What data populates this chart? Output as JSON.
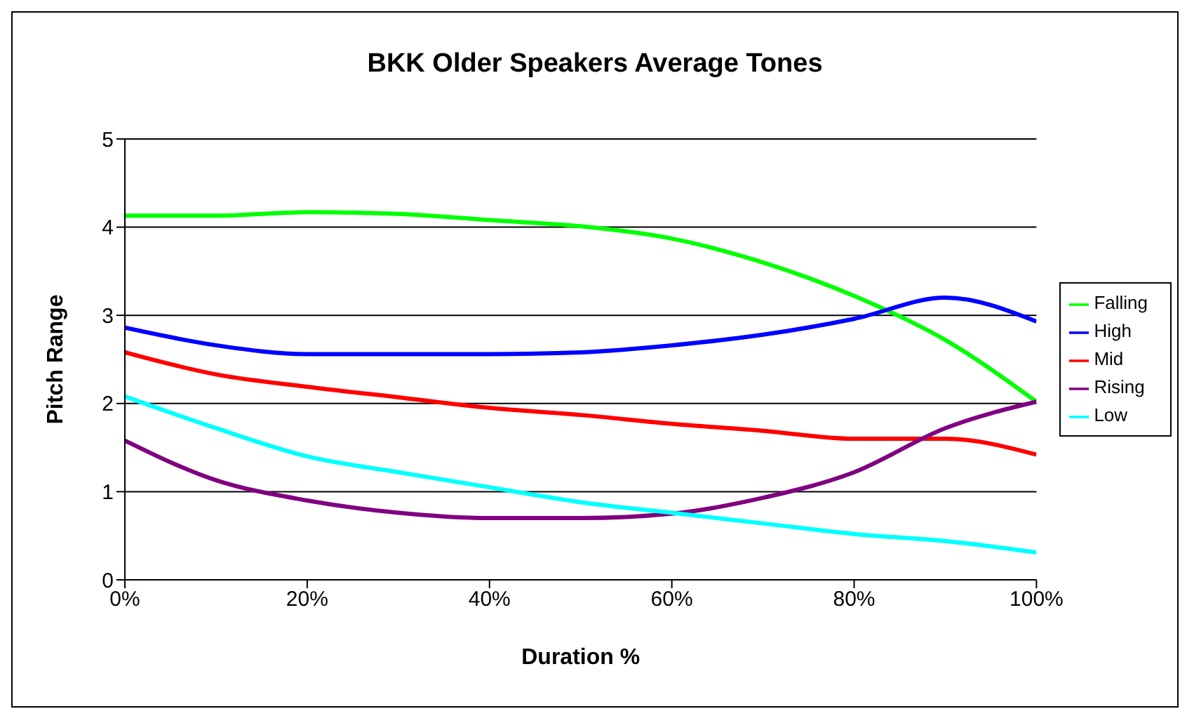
{
  "chart_data": {
    "type": "line",
    "title": "BKK Older Speakers Average Tones",
    "xlabel": "Duration %",
    "ylabel": "Pitch Range",
    "x": [
      0,
      10,
      20,
      30,
      40,
      50,
      60,
      70,
      80,
      90,
      100
    ],
    "series": [
      {
        "name": "Falling",
        "color": "#00ff00",
        "values": [
          4.13,
          4.13,
          4.17,
          4.15,
          4.08,
          4.01,
          3.87,
          3.6,
          3.22,
          2.72,
          2.02
        ]
      },
      {
        "name": "High",
        "color": "#0000ff",
        "values": [
          2.86,
          2.66,
          2.56,
          2.56,
          2.56,
          2.58,
          2.66,
          2.78,
          2.96,
          3.2,
          2.93
        ]
      },
      {
        "name": "Mid",
        "color": "#ff0000",
        "values": [
          2.58,
          2.33,
          2.19,
          2.07,
          1.95,
          1.87,
          1.77,
          1.69,
          1.6,
          1.6,
          1.42
        ]
      },
      {
        "name": "Rising",
        "color": "#800080",
        "values": [
          1.58,
          1.13,
          0.9,
          0.76,
          0.7,
          0.7,
          0.75,
          0.93,
          1.22,
          1.72,
          2.02
        ]
      },
      {
        "name": "Low",
        "color": "#00ffff",
        "values": [
          2.08,
          1.72,
          1.4,
          1.22,
          1.05,
          0.88,
          0.76,
          0.64,
          0.52,
          0.44,
          0.31
        ]
      }
    ],
    "xlim": [
      0,
      100
    ],
    "xticks": [
      {
        "value": 0,
        "label": "0%"
      },
      {
        "value": 20,
        "label": "20%"
      },
      {
        "value": 40,
        "label": "40%"
      },
      {
        "value": 60,
        "label": "60%"
      },
      {
        "value": 80,
        "label": "80%"
      },
      {
        "value": 100,
        "label": "100%"
      }
    ],
    "ylim": [
      0,
      5
    ],
    "yticks": [
      0,
      1,
      2,
      3,
      4,
      5
    ],
    "grid": "y",
    "legend": "right",
    "marker": "none",
    "line_style": "solid"
  }
}
